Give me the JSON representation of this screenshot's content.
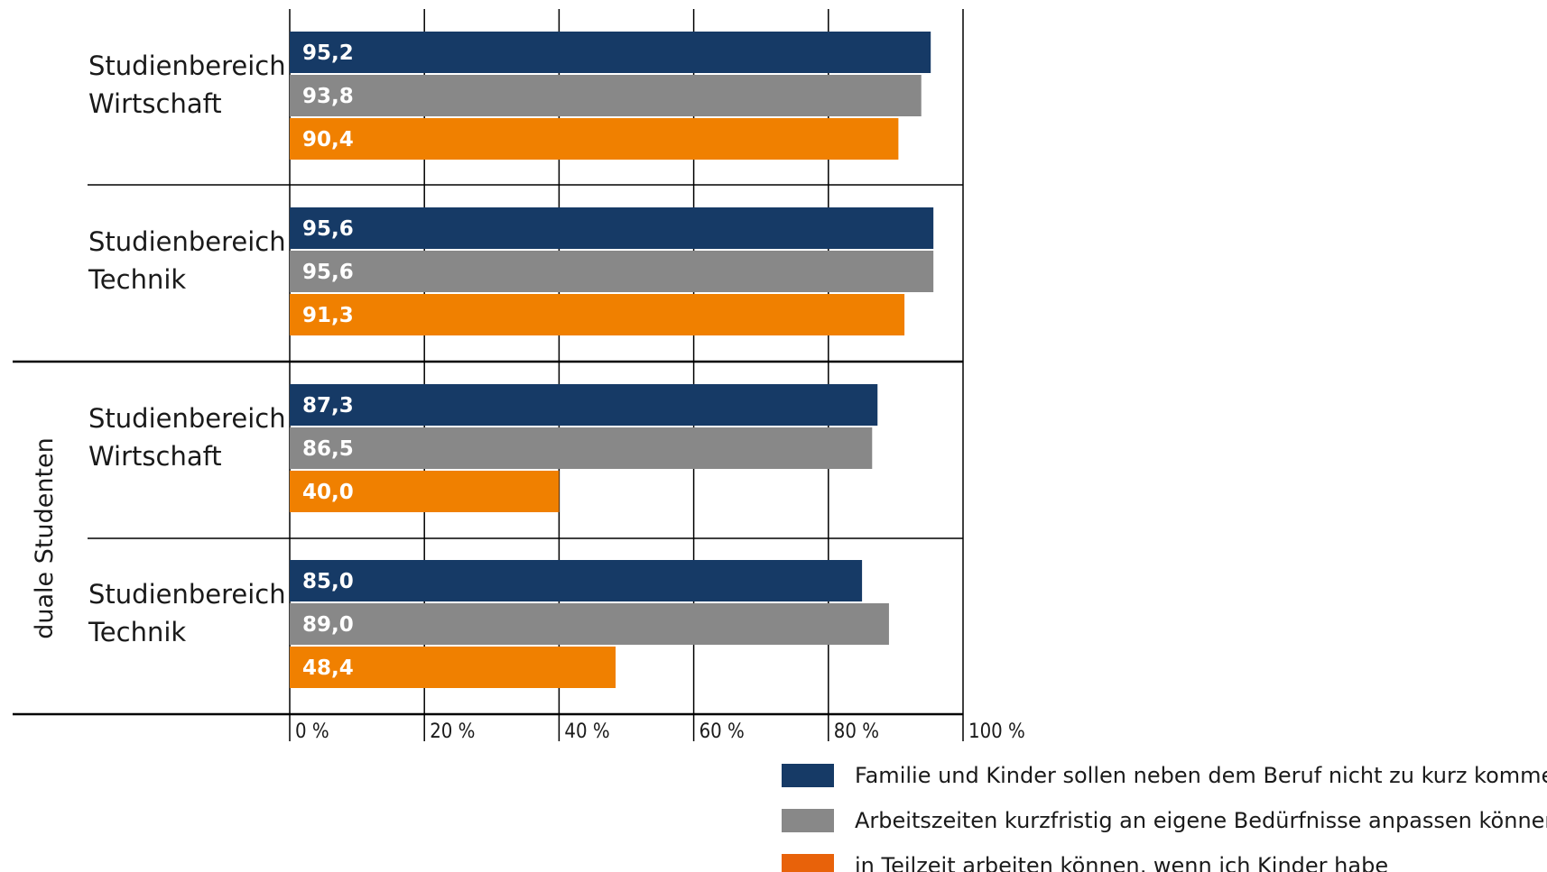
{
  "chart_data": {
    "type": "bar",
    "orientation": "horizontal",
    "group_label": "duale Studenten",
    "categories": [
      [
        "Studienbereich",
        "Wirtschaft"
      ],
      [
        "Studienbereich",
        "Technik"
      ],
      [
        "Studienbereich",
        "Wirtschaft"
      ],
      [
        "Studienbereich",
        "Technik"
      ]
    ],
    "series": [
      {
        "name": "Familie und Kinder sollen neben dem Beruf nicht zu kurz kommen",
        "color": "#163a66",
        "values": [
          95.2,
          95.6,
          87.3,
          85.0
        ],
        "labels": [
          "95,2",
          "95,6",
          "87,3",
          "85,0"
        ]
      },
      {
        "name": "Arbeitszeiten kurzfristig an eigene Bedürfnisse anpassen können",
        "color": "#888888",
        "values": [
          93.8,
          95.6,
          86.5,
          89.0
        ],
        "labels": [
          "93,8",
          "95,6",
          "86,5",
          "89,0"
        ]
      },
      {
        "name": "in Teilzeit arbeiten können, wenn ich Kinder habe",
        "color": "#f08000",
        "values": [
          90.4,
          91.3,
          40.0,
          48.4
        ],
        "labels": [
          "90,4",
          "91,3",
          "40,0",
          "48,4"
        ]
      }
    ],
    "legend_colors": [
      "#163a66",
      "#888888",
      "#e8620a"
    ],
    "x_ticks": [
      "0 %",
      "20 %",
      "40 %",
      "60 %",
      "80 %",
      "100 %"
    ],
    "xlim": [
      0,
      100
    ],
    "grid": true,
    "legend_position": "bottom-right"
  }
}
